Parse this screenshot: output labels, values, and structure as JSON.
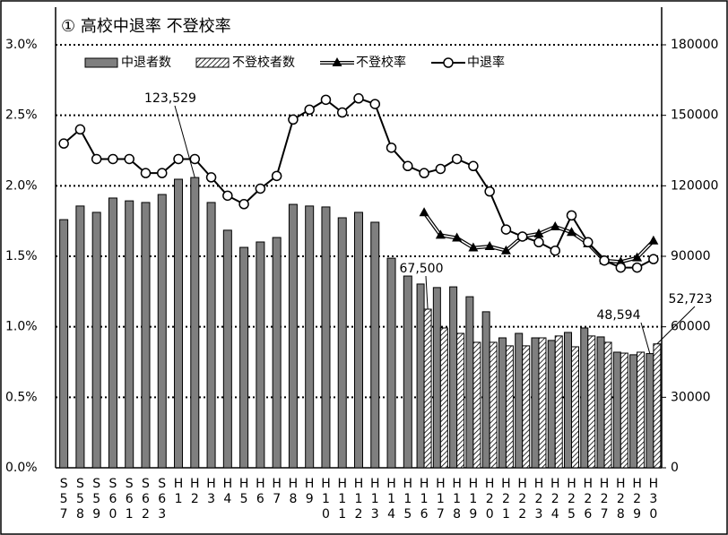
{
  "chart_data": {
    "type": "bar",
    "title": "① 高校中退率 不登校率",
    "categories": [
      "S57",
      "S58",
      "S59",
      "S60",
      "S61",
      "S62",
      "S63",
      "H1",
      "H2",
      "H3",
      "H4",
      "H5",
      "H6",
      "H7",
      "H8",
      "H9",
      "H10",
      "H11",
      "H12",
      "H13",
      "H14",
      "H15",
      "H16",
      "H17",
      "H18",
      "H19",
      "H20",
      "H21",
      "H22",
      "H23",
      "H24",
      "H25",
      "H26",
      "H27",
      "H28",
      "H29",
      "H30"
    ],
    "series": [
      {
        "name": "中退者数",
        "type": "bar",
        "axis": "y2",
        "color": "#7f7f7f",
        "values": [
          105600,
          111400,
          108700,
          114800,
          113600,
          112900,
          116300,
          122800,
          123529,
          112900,
          101100,
          93800,
          96100,
          98000,
          112100,
          111400,
          111000,
          106400,
          108700,
          104500,
          89200,
          81600,
          78200,
          76700,
          77000,
          72800,
          66400,
          55300,
          57200,
          55300,
          54200,
          57600,
          59500,
          55700,
          49200,
          48100,
          48594
        ],
        "value_labels": [
          null,
          null,
          null,
          null,
          null,
          null,
          null,
          null,
          "123,529",
          null,
          null,
          null,
          null,
          null,
          null,
          null,
          null,
          null,
          null,
          null,
          null,
          null,
          null,
          null,
          null,
          null,
          null,
          null,
          null,
          null,
          null,
          null,
          null,
          null,
          null,
          null,
          "48,594"
        ]
      },
      {
        "name": "不登校者数",
        "type": "bar",
        "axis": "y2",
        "color": "#ffffff",
        "hatch": true,
        "values": [
          null,
          null,
          null,
          null,
          null,
          null,
          null,
          null,
          null,
          null,
          null,
          null,
          null,
          null,
          null,
          null,
          null,
          null,
          null,
          null,
          null,
          null,
          67500,
          59500,
          57200,
          53400,
          53400,
          51900,
          51900,
          55300,
          56100,
          51500,
          56100,
          53400,
          48800,
          49200,
          52723
        ],
        "value_labels": [
          null,
          null,
          null,
          null,
          null,
          null,
          null,
          null,
          null,
          null,
          null,
          null,
          null,
          null,
          null,
          null,
          null,
          null,
          null,
          null,
          null,
          null,
          "67,500",
          null,
          null,
          null,
          null,
          null,
          null,
          null,
          null,
          null,
          null,
          null,
          null,
          null,
          "52,723"
        ]
      },
      {
        "name": "不登校率",
        "type": "line",
        "marker": "triangle",
        "color": "#000000",
        "values": [
          null,
          null,
          null,
          null,
          null,
          null,
          null,
          null,
          null,
          null,
          null,
          null,
          null,
          null,
          null,
          null,
          null,
          null,
          null,
          null,
          null,
          null,
          1.81,
          1.65,
          1.63,
          1.56,
          1.57,
          1.54,
          1.64,
          1.66,
          1.71,
          1.67,
          1.59,
          1.47,
          1.46,
          1.49,
          1.61
        ]
      },
      {
        "name": "中退率",
        "type": "line",
        "marker": "circle",
        "color": "#000000",
        "values": [
          2.3,
          2.4,
          2.19,
          2.19,
          2.19,
          2.09,
          2.09,
          2.19,
          2.19,
          2.06,
          1.93,
          1.87,
          1.98,
          2.07,
          2.47,
          2.54,
          2.61,
          2.52,
          2.62,
          2.58,
          2.27,
          2.14,
          2.09,
          2.12,
          2.19,
          2.14,
          1.96,
          1.69,
          1.64,
          1.6,
          1.54,
          1.79,
          1.6,
          1.47,
          1.42,
          1.42,
          1.48
        ]
      }
    ],
    "ylim": [
      0,
      3
    ],
    "yticks": [
      {
        "value": 0,
        "label": "0.0%"
      },
      {
        "value": 0.5,
        "label": "0.5%"
      },
      {
        "value": 1,
        "label": "1.0%"
      },
      {
        "value": 1.5,
        "label": "1.5%"
      },
      {
        "value": 2,
        "label": "2.0%"
      },
      {
        "value": 2.5,
        "label": "2.5%"
      },
      {
        "value": 3,
        "label": "3.0%"
      }
    ],
    "y2lim": [
      0,
      180000
    ],
    "y2ticks": [
      0,
      30000,
      60000,
      90000,
      120000,
      150000,
      180000
    ],
    "grid": true,
    "legend": "top"
  }
}
